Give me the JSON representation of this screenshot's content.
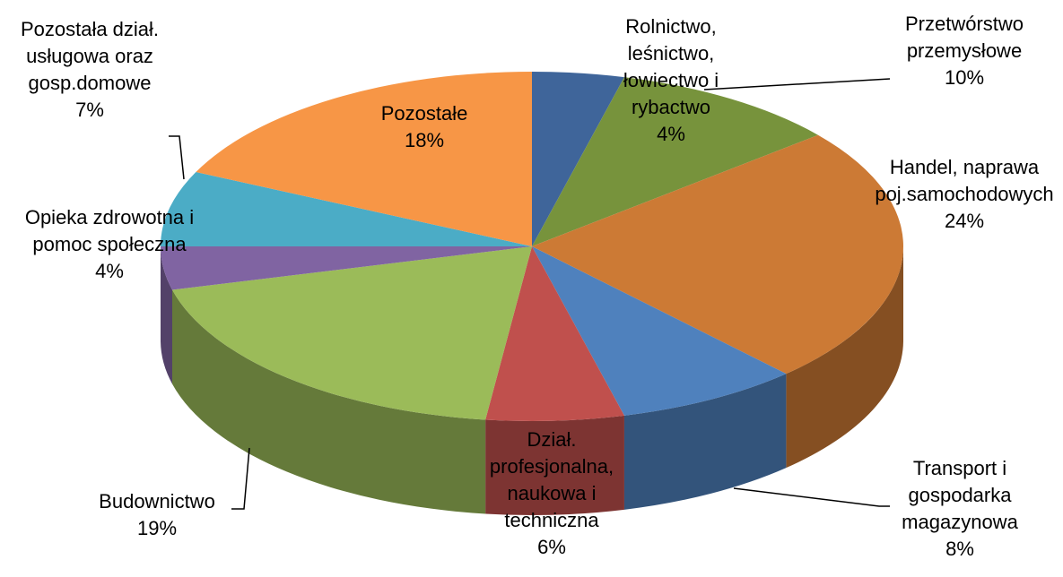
{
  "chart_data": {
    "type": "pie3d",
    "categories": [
      "Rolnictwo, leśnictwo, łowiectwo i rybactwo",
      "Przetwórstwo przemysłowe",
      "Handel, naprawa poj.samochodowych",
      "Transport i gospodarka magazynowa",
      "Dział. profesjonalna, naukowa i techniczna",
      "Budownictwo",
      "Opieka zdrowotna i pomoc społeczna",
      "Pozostała dział. usługowa oraz gosp.domowe",
      "Pozostałe"
    ],
    "values": [
      4,
      10,
      24,
      8,
      6,
      19,
      4,
      7,
      18
    ],
    "value_labels": [
      "4%",
      "10%",
      "24%",
      "8%",
      "6%",
      "19%",
      "4%",
      "7%",
      "18%"
    ],
    "colors": [
      "#3f659a",
      "#77933c",
      "#cc7a35",
      "#4f81bd",
      "#c0504d",
      "#9bbb59",
      "#8064a2",
      "#4bacc6",
      "#f79646"
    ]
  }
}
